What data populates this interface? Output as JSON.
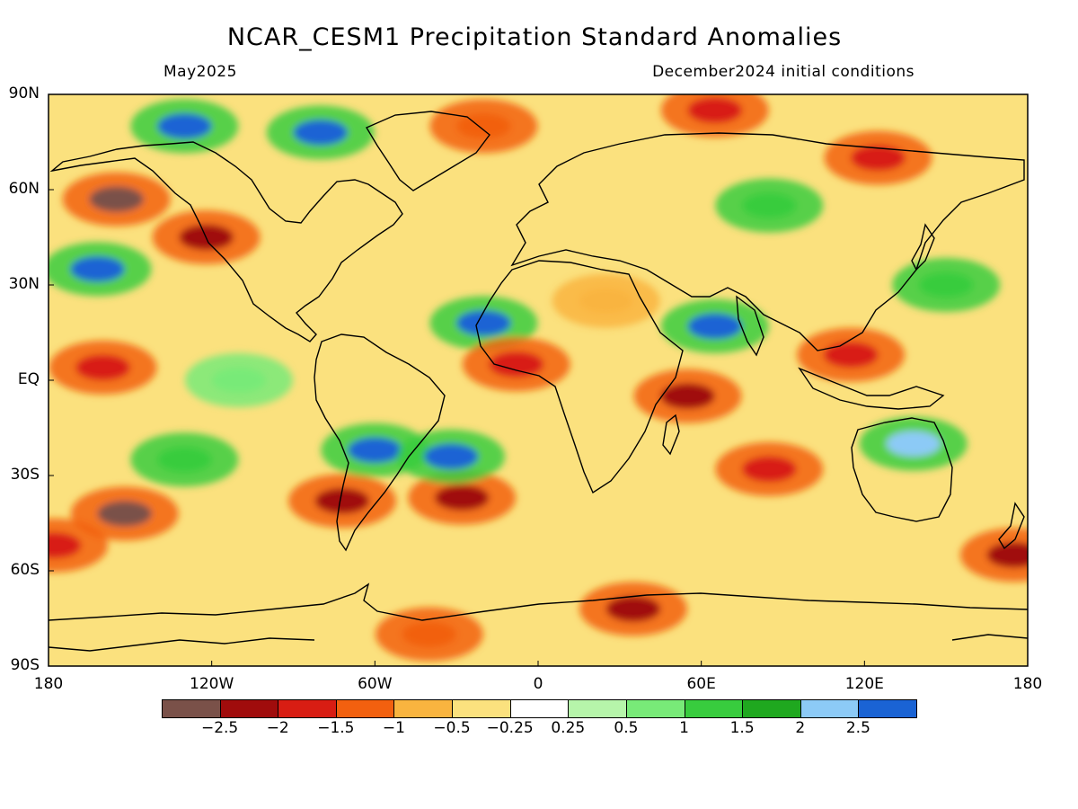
{
  "header": {
    "title": "NCAR_CESM1 Precipitation Standard Anomalies",
    "subtitle_left": "May2025",
    "subtitle_right": "December2024 initial conditions"
  },
  "map": {
    "projection": "equirectangular",
    "extent": {
      "lon": [
        -180,
        180
      ],
      "lat": [
        -90,
        90
      ]
    },
    "lat_ticks": [
      {
        "value": 90,
        "label": "90N"
      },
      {
        "value": 60,
        "label": "60N"
      },
      {
        "value": 30,
        "label": "30N"
      },
      {
        "value": 0,
        "label": "EQ"
      },
      {
        "value": -30,
        "label": "30S"
      },
      {
        "value": -60,
        "label": "60S"
      },
      {
        "value": -90,
        "label": "90S"
      }
    ],
    "lon_ticks": [
      {
        "value": -180,
        "label": "180"
      },
      {
        "value": -120,
        "label": "120W"
      },
      {
        "value": -60,
        "label": "60W"
      },
      {
        "value": 0,
        "label": "0"
      },
      {
        "value": 60,
        "label": "60E"
      },
      {
        "value": 120,
        "label": "120E"
      },
      {
        "value": 180,
        "label": "180"
      }
    ]
  },
  "colorbar": {
    "colors": [
      "#7a5149",
      "#a00c0c",
      "#d81d13",
      "#f2600f",
      "#f9b43f",
      "#fbe17e",
      "#ffffff",
      "#b6f5aa",
      "#78ea78",
      "#38cc3e",
      "#1fa81f",
      "#8ccaf6",
      "#1a63d4"
    ],
    "labels": [
      "−2.5",
      "−2",
      "−1.5",
      "−1",
      "−0.5",
      "−0.25",
      "0.25",
      "0.5",
      "1",
      "1.5",
      "2",
      "2.5"
    ]
  },
  "chart_data": {
    "type": "heatmap",
    "title": "NCAR_CESM1 Precipitation Standard Anomalies",
    "subtitle": [
      "May2025",
      "December2024 initial conditions"
    ],
    "x_range": [
      -180,
      180
    ],
    "y_range": [
      -90,
      90
    ],
    "levels": [
      -2.5,
      -2,
      -1.5,
      -1,
      -0.5,
      -0.25,
      0.25,
      0.5,
      1,
      1.5,
      2,
      2.5
    ],
    "anomaly_regions": [
      {
        "lon": -155,
        "lat": 57,
        "value": -2.6
      },
      {
        "lon": -122,
        "lat": 45,
        "value": -2.2
      },
      {
        "lon": -162,
        "lat": 35,
        "value": 2.6
      },
      {
        "lon": -160,
        "lat": 4,
        "value": -1.6
      },
      {
        "lon": -130,
        "lat": -25,
        "value": 1.2
      },
      {
        "lon": -152,
        "lat": -42,
        "value": -2.6
      },
      {
        "lon": -178,
        "lat": -52,
        "value": -2.0
      },
      {
        "lon": -72,
        "lat": -38,
        "value": -2.1
      },
      {
        "lon": -28,
        "lat": -37,
        "value": -2.2
      },
      {
        "lon": -60,
        "lat": -22,
        "value": 2.6
      },
      {
        "lon": -32,
        "lat": -24,
        "value": 2.6
      },
      {
        "lon": -20,
        "lat": 18,
        "value": 2.6
      },
      {
        "lon": -8,
        "lat": 5,
        "value": -2.0
      },
      {
        "lon": 55,
        "lat": -5,
        "value": -2.1
      },
      {
        "lon": 85,
        "lat": -28,
        "value": -1.8
      },
      {
        "lon": 175,
        "lat": -55,
        "value": -2.4
      },
      {
        "lon": 35,
        "lat": -72,
        "value": -2.1
      },
      {
        "lon": -40,
        "lat": -80,
        "value": -1.5
      },
      {
        "lon": -130,
        "lat": 80,
        "value": 2.6
      },
      {
        "lon": -80,
        "lat": 78,
        "value": 2.6
      },
      {
        "lon": -20,
        "lat": 80,
        "value": -1.5
      },
      {
        "lon": 65,
        "lat": 85,
        "value": -1.8
      },
      {
        "lon": 125,
        "lat": 70,
        "value": -2.0
      },
      {
        "lon": 115,
        "lat": 8,
        "value": -1.8
      },
      {
        "lon": 65,
        "lat": 17,
        "value": 2.6
      },
      {
        "lon": 138,
        "lat": -20,
        "value": 2.3
      },
      {
        "lon": 25,
        "lat": 25,
        "value": -0.8
      },
      {
        "lon": 85,
        "lat": 55,
        "value": 1.2
      },
      {
        "lon": -110,
        "lat": 0,
        "value": 0.6
      },
      {
        "lon": 150,
        "lat": 30,
        "value": 1.1
      }
    ]
  }
}
